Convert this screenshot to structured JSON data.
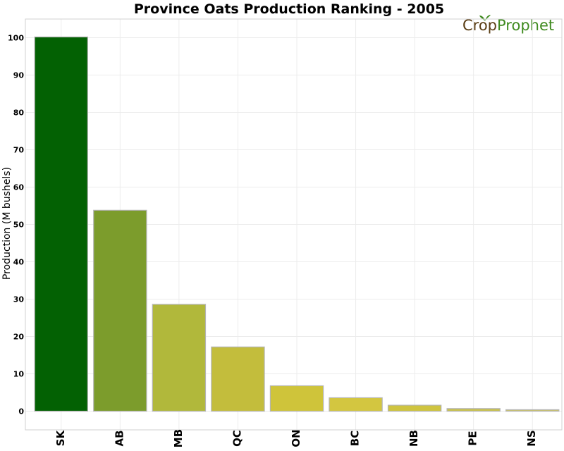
{
  "chart_data": {
    "type": "bar",
    "title": "Province Oats Production Ranking - 2005",
    "xlabel": "",
    "ylabel": "Production (M bushels)",
    "categories": [
      "SK",
      "AB",
      "MB",
      "QC",
      "ON",
      "BC",
      "NB",
      "PE",
      "NS"
    ],
    "values": [
      100.2,
      53.8,
      28.6,
      17.2,
      6.8,
      3.6,
      1.6,
      0.7,
      0.4
    ],
    "colors": [
      "#036103",
      "#7c9c2c",
      "#b1b83b",
      "#c3bd3c",
      "#cfc43a",
      "#d3c640",
      "#cfc43f",
      "#c9c14d",
      "#c6c070"
    ],
    "ylim": [
      -5,
      105
    ],
    "yticks": [
      0,
      10,
      20,
      30,
      40,
      50,
      60,
      70,
      80,
      90,
      100
    ],
    "grid": true,
    "legend": "none"
  },
  "logo": {
    "part1": "Crop",
    "part2": "Prophet",
    "color1": "#5a3d14",
    "color2": "#3f8a1f"
  }
}
